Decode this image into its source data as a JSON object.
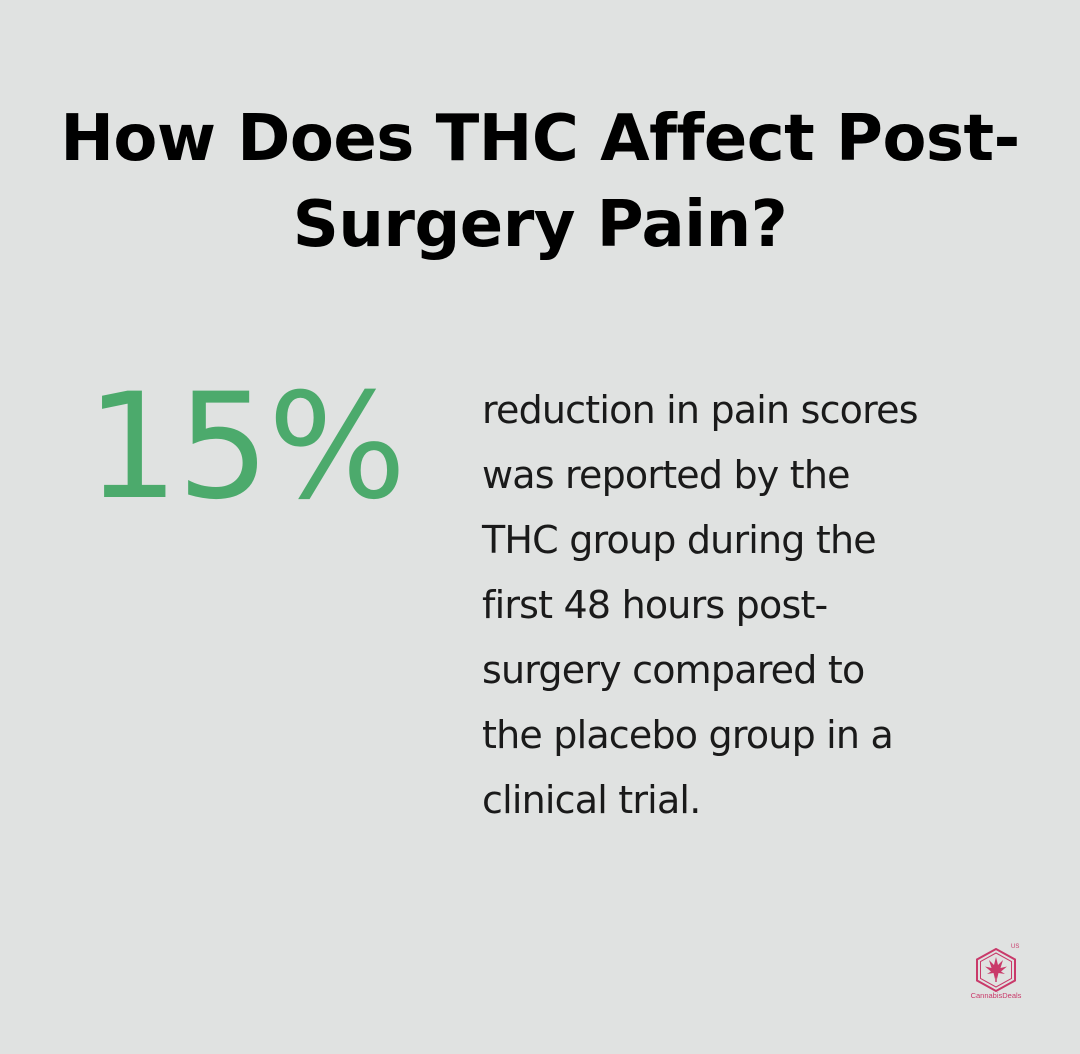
{
  "heading": "How Does THC Affect Post-\nSurgery Pain?",
  "stat": {
    "value": "15%",
    "description": "reduction in pain scores\nwas reported by the\nTHC group during the\nfirst 48 hours post-\nsurgery compared to\nthe placebo group in a\nclinical trial."
  },
  "logo": {
    "badge": "US",
    "brand": "CannabisDeals",
    "icon": "cannabis-leaf-hexagon-icon"
  },
  "colors": {
    "background": "#e0e2e1",
    "accent_green": "#4caa6c",
    "logo_pink": "#c93a6a",
    "text": "#000000"
  }
}
